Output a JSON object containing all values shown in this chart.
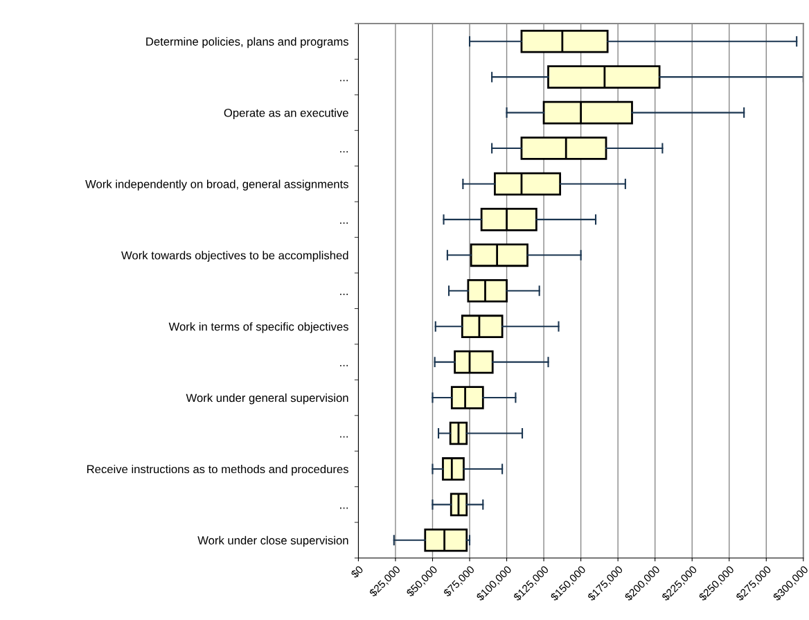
{
  "chart_data": {
    "type": "box",
    "orientation": "horizontal",
    "categories": [
      "Determine policies, plans and programs",
      "...",
      "Operate as an executive",
      "...",
      "Work independently on broad, general assignments",
      "...",
      "Work towards objectives to be accomplished",
      "...",
      "Work in terms of specific objectives",
      "...",
      "Work under general supervision",
      "...",
      "Receive instructions as to methods and procedures",
      "...",
      "Work under close supervision"
    ],
    "boxes": [
      {
        "low": 75000,
        "q1": 110000,
        "median": 137500,
        "q3": 168000,
        "high": 295500
      },
      {
        "low": 90000,
        "q1": 128000,
        "median": 166000,
        "q3": 203000,
        "high": 300000
      },
      {
        "low": 100000,
        "q1": 125000,
        "median": 150000,
        "q3": 184500,
        "high": 260000
      },
      {
        "low": 90000,
        "q1": 110000,
        "median": 140000,
        "q3": 167000,
        "high": 205000
      },
      {
        "low": 70500,
        "q1": 92000,
        "median": 110000,
        "q3": 136000,
        "high": 180000
      },
      {
        "low": 57500,
        "q1": 83000,
        "median": 100000,
        "q3": 120000,
        "high": 160000
      },
      {
        "low": 60000,
        "q1": 76000,
        "median": 93500,
        "q3": 114000,
        "high": 150000
      },
      {
        "low": 61000,
        "q1": 74000,
        "median": 85500,
        "q3": 100000,
        "high": 122000
      },
      {
        "low": 52000,
        "q1": 70000,
        "median": 81500,
        "q3": 97000,
        "high": 135000
      },
      {
        "low": 51500,
        "q1": 65000,
        "median": 75000,
        "q3": 90500,
        "high": 128000
      },
      {
        "low": 50000,
        "q1": 63000,
        "median": 72000,
        "q3": 84000,
        "high": 106000
      },
      {
        "low": 54000,
        "q1": 62000,
        "median": 67500,
        "q3": 73000,
        "high": 110500
      },
      {
        "low": 50000,
        "q1": 57000,
        "median": 63000,
        "q3": 71000,
        "high": 97000
      },
      {
        "low": 50000,
        "q1": 62500,
        "median": 67500,
        "q3": 73000,
        "high": 84000
      },
      {
        "low": 24000,
        "q1": 45000,
        "median": 58000,
        "q3": 73000,
        "high": 75000
      }
    ],
    "color": "#ffffcc",
    "xlim": [
      0,
      300000
    ],
    "xticks": [
      {
        "value": 0,
        "label": "$0"
      },
      {
        "value": 25000,
        "label": "$25,000"
      },
      {
        "value": 50000,
        "label": "$50,000"
      },
      {
        "value": 75000,
        "label": "$75,000"
      },
      {
        "value": 100000,
        "label": "$100,000"
      },
      {
        "value": 125000,
        "label": "$125,000"
      },
      {
        "value": 150000,
        "label": "$150,000"
      },
      {
        "value": 175000,
        "label": "$175,000"
      },
      {
        "value": 200000,
        "label": "$200,000"
      },
      {
        "value": 225000,
        "label": "$225,000"
      },
      {
        "value": 250000,
        "label": "$250,000"
      },
      {
        "value": 275000,
        "label": "$275,000"
      },
      {
        "value": 300000,
        "label": "$300,000"
      }
    ],
    "grid": "x",
    "legend": false
  }
}
